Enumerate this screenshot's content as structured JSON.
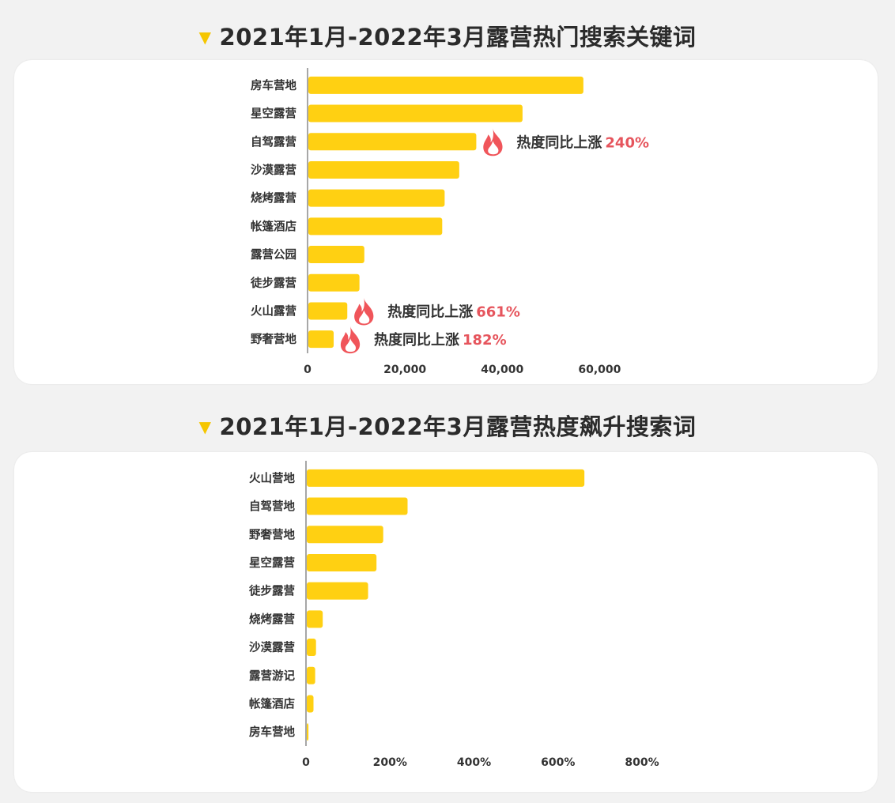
{
  "sections": [
    {
      "title": "2021年1月-2022年3月露营热门搜索关键词",
      "chart_data": {
        "type": "bar",
        "orientation": "horizontal",
        "categories": [
          "房车营地",
          "星空露营",
          "自驾露营",
          "沙漠露营",
          "烧烤露营",
          "帐篷酒店",
          "露营公园",
          "徒步露营",
          "火山露营",
          "野奢营地"
        ],
        "values": [
          56500,
          44000,
          34500,
          31000,
          28000,
          27500,
          11500,
          10500,
          8000,
          5200
        ],
        "xticks": [
          "0",
          "20,000",
          "40,000",
          "60,000"
        ],
        "xlim": [
          0,
          65000
        ],
        "bar_color": "#ffd012",
        "annotations": [
          {
            "category": "自驾露营",
            "label": "热度同比上涨",
            "value": "240%"
          },
          {
            "category": "火山露营",
            "label": "热度同比上涨",
            "value": "661%"
          },
          {
            "category": "野奢营地",
            "label": "热度同比上涨",
            "value": "182%"
          }
        ]
      }
    },
    {
      "title": "2021年1月-2022年3月露营热度飙升搜索词",
      "chart_data": {
        "type": "bar",
        "orientation": "horizontal",
        "categories": [
          "火山营地",
          "自驾营地",
          "野奢营地",
          "星空露营",
          "徒步露营",
          "烧烤露营",
          "沙漠露营",
          "露营游记",
          "帐篷酒店",
          "房车营地"
        ],
        "values": [
          661,
          240,
          182,
          166,
          146,
          38,
          22,
          20,
          16,
          4
        ],
        "xticks": [
          "0",
          "200%",
          "400%",
          "600%",
          "800%"
        ],
        "xlim": [
          0,
          850
        ],
        "bar_color": "#ffd012"
      }
    }
  ],
  "colors": {
    "accent": "#ffd012",
    "highlight": "#e6555d",
    "fire_icon": "#f0555a"
  }
}
